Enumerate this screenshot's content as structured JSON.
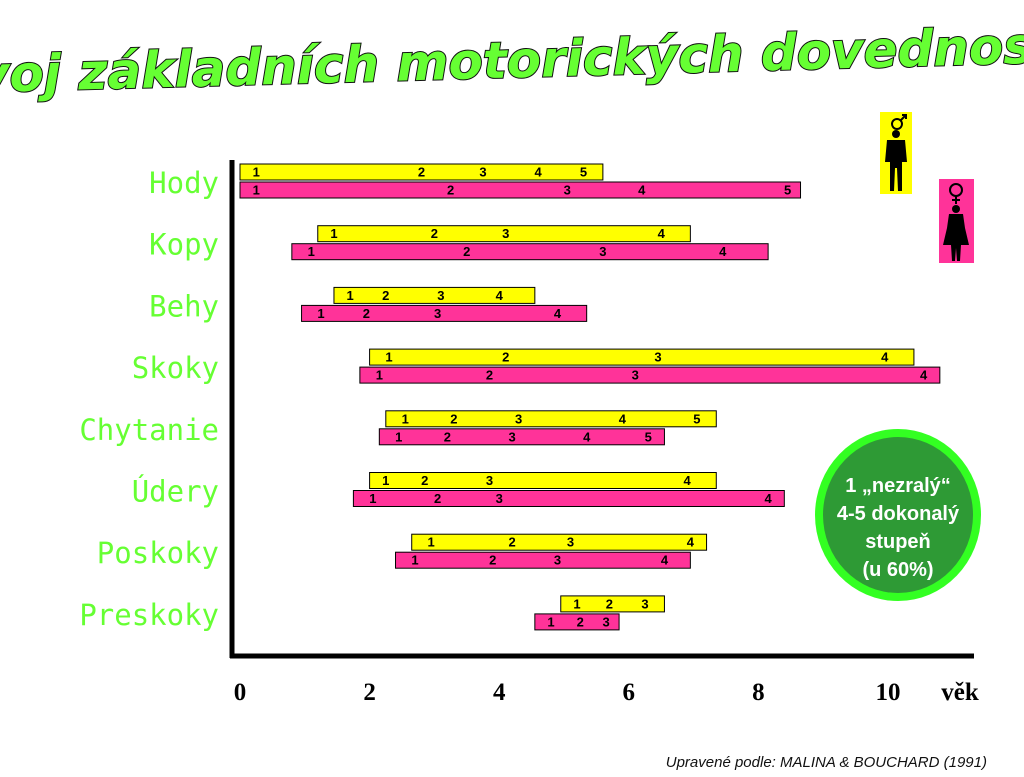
{
  "title": "Vývoj základních motorických dovedností",
  "source": "Upravené podle: MALINA &  BOUCHARD (1991)",
  "colors": {
    "male_bar": "#ffff00",
    "female_bar": "#ff3399",
    "label": "#66ff33",
    "note_fill": "#2e9a35",
    "note_ring": "#33ff22",
    "female_icon_bg": "#ff3399",
    "male_icon_bg": "#ffff00"
  },
  "icons": {
    "male": "male-figure-icon",
    "female": "female-figure-icon"
  },
  "note": {
    "lines": [
      "1 „nezralý“",
      "4-5 dokonalý",
      "stupeň",
      "(u 60%)"
    ]
  },
  "chart_data": {
    "type": "bar",
    "orientation": "horizontal-range",
    "xlabel": "věk",
    "xticks": [
      "0",
      "2",
      "4",
      "6",
      "8",
      "10"
    ],
    "xlim": [
      0,
      11.2
    ],
    "legend": [
      "male-figure-icon",
      "female-figure-icon"
    ],
    "categories": [
      {
        "name": "Hody",
        "male": {
          "start": 0.0,
          "end": 5.6,
          "stages": [
            {
              "label": "1",
              "x": 0.25
            },
            {
              "label": "2",
              "x": 2.8
            },
            {
              "label": "3",
              "x": 3.75
            },
            {
              "label": "4",
              "x": 4.6
            },
            {
              "label": "5",
              "x": 5.3
            }
          ]
        },
        "female": {
          "start": 0.0,
          "end": 8.65,
          "stages": [
            {
              "label": "1",
              "x": 0.25
            },
            {
              "label": "2",
              "x": 3.25
            },
            {
              "label": "3",
              "x": 5.05
            },
            {
              "label": "4",
              "x": 6.2
            },
            {
              "label": "5",
              "x": 8.45
            }
          ]
        }
      },
      {
        "name": "Kopy",
        "male": {
          "start": 1.2,
          "end": 6.95,
          "stages": [
            {
              "label": "1",
              "x": 1.45
            },
            {
              "label": "2",
              "x": 3.0
            },
            {
              "label": "3",
              "x": 4.1
            },
            {
              "label": "4",
              "x": 6.5
            }
          ]
        },
        "female": {
          "start": 0.8,
          "end": 8.15,
          "stages": [
            {
              "label": "1",
              "x": 1.1
            },
            {
              "label": "2",
              "x": 3.5
            },
            {
              "label": "3",
              "x": 5.6
            },
            {
              "label": "4",
              "x": 7.45
            }
          ]
        }
      },
      {
        "name": "Behy",
        "male": {
          "start": 1.45,
          "end": 4.55,
          "stages": [
            {
              "label": "1",
              "x": 1.7
            },
            {
              "label": "2",
              "x": 2.25
            },
            {
              "label": "3",
              "x": 3.1
            },
            {
              "label": "4",
              "x": 4.0
            }
          ]
        },
        "female": {
          "start": 0.95,
          "end": 5.35,
          "stages": [
            {
              "label": "1",
              "x": 1.25
            },
            {
              "label": "2",
              "x": 1.95
            },
            {
              "label": "3",
              "x": 3.05
            },
            {
              "label": "4",
              "x": 4.9
            }
          ]
        }
      },
      {
        "name": "Skoky",
        "male": {
          "start": 2.0,
          "end": 10.4,
          "stages": [
            {
              "label": "1",
              "x": 2.3
            },
            {
              "label": "2",
              "x": 4.1
            },
            {
              "label": "3",
              "x": 6.45
            },
            {
              "label": "4",
              "x": 9.95
            }
          ]
        },
        "female": {
          "start": 1.85,
          "end": 10.8,
          "stages": [
            {
              "label": "1",
              "x": 2.15
            },
            {
              "label": "2",
              "x": 3.85
            },
            {
              "label": "3",
              "x": 6.1
            },
            {
              "label": "4",
              "x": 10.55
            }
          ]
        }
      },
      {
        "name": "Chytanie",
        "male": {
          "start": 2.25,
          "end": 7.35,
          "stages": [
            {
              "label": "1",
              "x": 2.55
            },
            {
              "label": "2",
              "x": 3.3
            },
            {
              "label": "3",
              "x": 4.3
            },
            {
              "label": "4",
              "x": 5.9
            },
            {
              "label": "5",
              "x": 7.05
            }
          ]
        },
        "female": {
          "start": 2.15,
          "end": 6.55,
          "stages": [
            {
              "label": "1",
              "x": 2.45
            },
            {
              "label": "2",
              "x": 3.2
            },
            {
              "label": "3",
              "x": 4.2
            },
            {
              "label": "4",
              "x": 5.35
            },
            {
              "label": "5",
              "x": 6.3
            }
          ]
        }
      },
      {
        "name": "Údery",
        "male": {
          "start": 2.0,
          "end": 7.35,
          "stages": [
            {
              "label": "1",
              "x": 2.25
            },
            {
              "label": "2",
              "x": 2.85
            },
            {
              "label": "3",
              "x": 3.85
            },
            {
              "label": "4",
              "x": 6.9
            }
          ]
        },
        "female": {
          "start": 1.75,
          "end": 8.4,
          "stages": [
            {
              "label": "1",
              "x": 2.05
            },
            {
              "label": "2",
              "x": 3.05
            },
            {
              "label": "3",
              "x": 4.0
            },
            {
              "label": "4",
              "x": 8.15
            }
          ]
        }
      },
      {
        "name": "Poskoky",
        "male": {
          "start": 2.65,
          "end": 7.2,
          "stages": [
            {
              "label": "1",
              "x": 2.95
            },
            {
              "label": "2",
              "x": 4.2
            },
            {
              "label": "3",
              "x": 5.1
            },
            {
              "label": "4",
              "x": 6.95
            }
          ]
        },
        "female": {
          "start": 2.4,
          "end": 6.95,
          "stages": [
            {
              "label": "1",
              "x": 2.7
            },
            {
              "label": "2",
              "x": 3.9
            },
            {
              "label": "3",
              "x": 4.9
            },
            {
              "label": "4",
              "x": 6.55
            }
          ]
        }
      },
      {
        "name": "Preskoky",
        "male": {
          "start": 4.95,
          "end": 6.55,
          "stages": [
            {
              "label": "1",
              "x": 5.2
            },
            {
              "label": "2",
              "x": 5.7
            },
            {
              "label": "3",
              "x": 6.25
            }
          ]
        },
        "female": {
          "start": 4.55,
          "end": 5.85,
          "stages": [
            {
              "label": "1",
              "x": 4.8
            },
            {
              "label": "2",
              "x": 5.25
            },
            {
              "label": "3",
              "x": 5.65
            }
          ]
        }
      }
    ]
  }
}
